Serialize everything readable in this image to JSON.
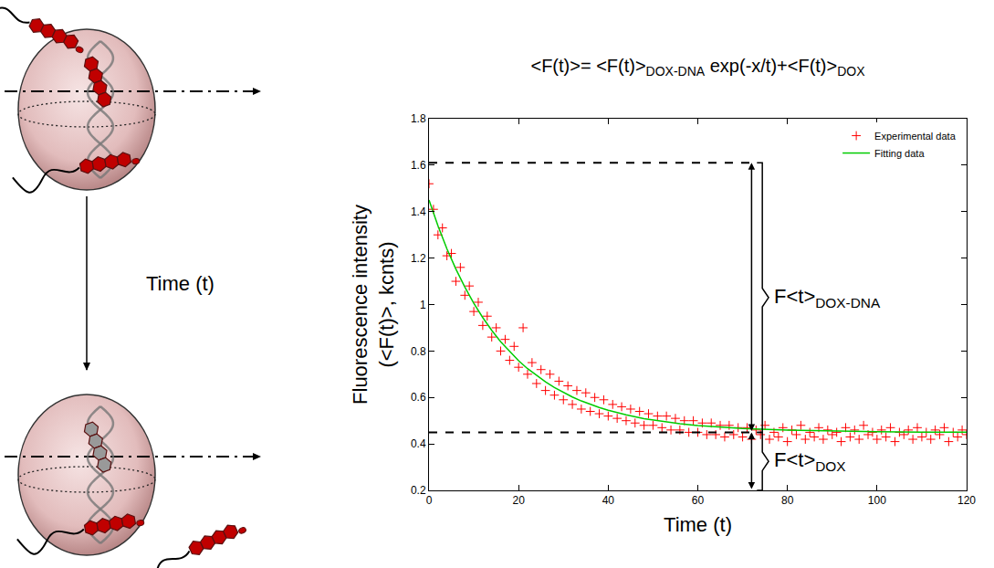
{
  "chart_data": {
    "type": "scatter",
    "title": [
      {
        "text": "<F(t)>= <F(t)>",
        "sub": false
      },
      {
        "text": "DOX-DNA",
        "sub": true
      },
      {
        "text": " exp(-x/t)+<F(t)>",
        "sub": false
      },
      {
        "text": "DOX",
        "sub": true
      }
    ],
    "x_label": "Time (t)",
    "y_label": [
      "Fluorescence intensity",
      "(<F(t)>, kcnts)"
    ],
    "xlim": [
      0,
      120
    ],
    "xticks": [
      0,
      20,
      40,
      60,
      80,
      100,
      120
    ],
    "ylim": [
      0.2,
      1.8
    ],
    "yticks": [
      0.2,
      0.4,
      0.6,
      0.8,
      1,
      1.2,
      1.4,
      1.6,
      1.8
    ],
    "grid": false,
    "legend": "upper right",
    "series": [
      {
        "name": "Experimental data",
        "type": "scatter",
        "marker": "cross",
        "color": "#ff0000",
        "x": [
          0,
          1,
          2,
          3,
          4,
          5,
          6,
          7,
          8,
          9,
          10,
          11,
          12,
          13,
          14,
          15,
          16,
          17,
          18,
          19,
          20,
          21,
          22,
          23,
          24,
          25,
          26,
          27,
          28,
          29,
          30,
          31,
          32,
          33,
          34,
          35,
          36,
          37,
          38,
          39,
          40,
          41,
          42,
          43,
          44,
          45,
          46,
          47,
          48,
          49,
          50,
          51,
          52,
          53,
          54,
          55,
          56,
          57,
          58,
          59,
          60,
          61,
          62,
          63,
          64,
          65,
          66,
          67,
          68,
          69,
          70,
          71,
          72,
          73,
          74,
          75,
          76,
          77,
          78,
          79,
          80,
          81,
          82,
          83,
          84,
          85,
          86,
          87,
          88,
          89,
          90,
          91,
          92,
          93,
          94,
          95,
          96,
          97,
          98,
          99,
          100,
          101,
          102,
          103,
          104,
          105,
          106,
          107,
          108,
          109,
          110,
          111,
          112,
          113,
          114,
          115,
          116,
          117,
          118,
          119,
          120
        ],
        "values": [
          1.52,
          1.41,
          1.3,
          1.33,
          1.21,
          1.22,
          1.1,
          1.16,
          1.04,
          1.08,
          0.97,
          1.01,
          0.91,
          0.95,
          0.86,
          0.9,
          0.8,
          0.85,
          0.76,
          0.82,
          0.73,
          0.9,
          0.7,
          0.75,
          0.66,
          0.72,
          0.63,
          0.7,
          0.61,
          0.67,
          0.59,
          0.65,
          0.57,
          0.63,
          0.55,
          0.62,
          0.54,
          0.6,
          0.53,
          0.59,
          0.52,
          0.57,
          0.51,
          0.56,
          0.5,
          0.55,
          0.49,
          0.54,
          0.48,
          0.53,
          0.48,
          0.52,
          0.47,
          0.52,
          0.46,
          0.51,
          0.46,
          0.5,
          0.45,
          0.5,
          0.45,
          0.49,
          0.44,
          0.49,
          0.44,
          0.48,
          0.43,
          0.48,
          0.44,
          0.47,
          0.43,
          0.47,
          0.42,
          0.46,
          0.44,
          0.48,
          0.42,
          0.45,
          0.43,
          0.47,
          0.41,
          0.46,
          0.44,
          0.48,
          0.42,
          0.45,
          0.43,
          0.47,
          0.42,
          0.46,
          0.44,
          0.45,
          0.41,
          0.47,
          0.43,
          0.46,
          0.42,
          0.48,
          0.44,
          0.45,
          0.42,
          0.46,
          0.43,
          0.47,
          0.41,
          0.45,
          0.44,
          0.46,
          0.42,
          0.47,
          0.43,
          0.45,
          0.42,
          0.46,
          0.44,
          0.47,
          0.41,
          0.45,
          0.43,
          0.46,
          0.44
        ]
      },
      {
        "name": "Fitting data",
        "type": "line",
        "color": "#00cc00",
        "line_style": "solid",
        "x": [
          0,
          2,
          4,
          6,
          8,
          10,
          12,
          14,
          16,
          18,
          20,
          22,
          24,
          26,
          28,
          30,
          32,
          34,
          36,
          38,
          40,
          44,
          48,
          52,
          56,
          60,
          70,
          80,
          90,
          100,
          110,
          120
        ],
        "values": [
          1.45,
          1.339,
          1.24,
          1.153,
          1.075,
          1.005,
          0.944,
          0.889,
          0.84,
          0.797,
          0.758,
          0.724,
          0.694,
          0.667,
          0.643,
          0.621,
          0.602,
          0.585,
          0.57,
          0.557,
          0.545,
          0.525,
          0.509,
          0.497,
          0.487,
          0.479,
          0.466,
          0.459,
          0.455,
          0.453,
          0.451,
          0.451
        ]
      }
    ],
    "reference_lines": [
      {
        "y": 1.61,
        "x0": 0,
        "x1": 72,
        "line_style": "dashed"
      },
      {
        "y": 0.45,
        "x0": 0,
        "x1": 72,
        "line_style": "dashed"
      }
    ],
    "brackets": [
      {
        "label": [
          {
            "text": "F<t>",
            "sub": false
          },
          {
            "text": "DOX-DNA",
            "sub": true
          }
        ],
        "x": 72,
        "y0": 0.45,
        "y1": 1.61
      },
      {
        "label": [
          {
            "text": "F<t>",
            "sub": false
          },
          {
            "text": "DOX",
            "sub": true
          }
        ],
        "x": 72,
        "y0": 0.2,
        "y1": 0.45
      }
    ]
  },
  "diagram": {
    "arrow_label": "Time (t)"
  }
}
